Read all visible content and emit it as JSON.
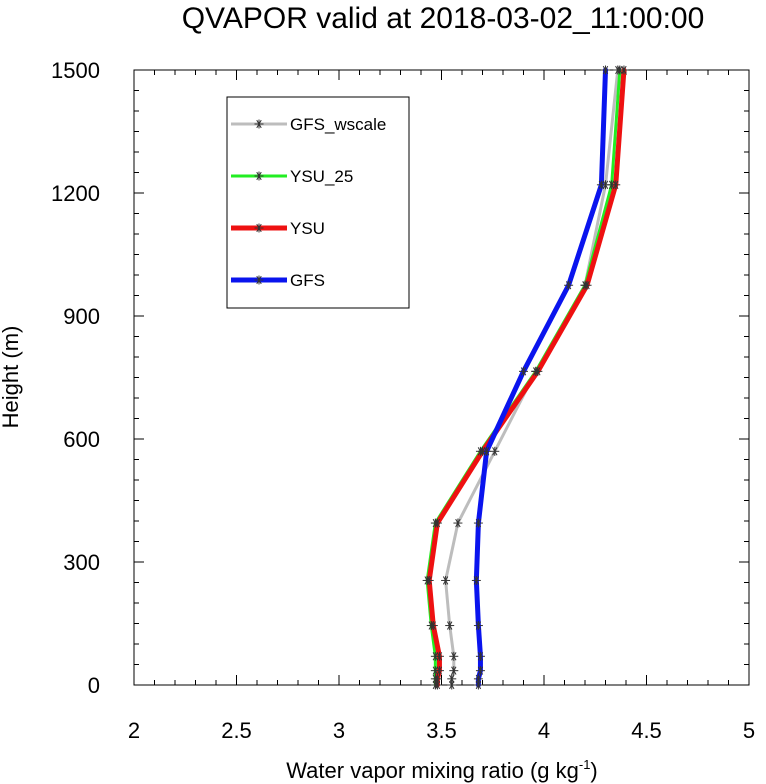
{
  "chart_data": {
    "type": "line",
    "title": "QVAPOR valid at 2018-03-02_11:00:00",
    "xlabel": "Water vapor mixing ratio (g kg",
    "xlabel_sup": "-1",
    "xlabel_end": ")",
    "ylabel": "Height (m)",
    "xlim": [
      2,
      5
    ],
    "ylim": [
      0,
      1500
    ],
    "x_ticks": [
      "2",
      "2.5",
      "3",
      "3.5",
      "4",
      "4.5",
      "5"
    ],
    "y_ticks": [
      "0",
      "300",
      "600",
      "900",
      "1200",
      "1500"
    ],
    "heights": [
      0,
      15,
      35,
      70,
      145,
      255,
      395,
      570,
      765,
      975,
      1220,
      1500
    ],
    "series": [
      {
        "name": "GFS_wscale",
        "color": "#bdbdbd",
        "width": 3,
        "values": [
          3.55,
          3.55,
          3.56,
          3.56,
          3.54,
          3.52,
          3.58,
          3.76,
          3.96,
          4.2,
          4.3,
          4.36
        ]
      },
      {
        "name": "YSU_25",
        "color": "#22ee22",
        "width": 3,
        "values": [
          3.47,
          3.47,
          3.47,
          3.47,
          3.45,
          3.43,
          3.47,
          3.69,
          3.96,
          4.2,
          4.33,
          4.37
        ]
      },
      {
        "name": "YSU",
        "color": "#ee1111",
        "width": 5,
        "values": [
          3.48,
          3.48,
          3.49,
          3.49,
          3.46,
          3.44,
          3.48,
          3.7,
          3.97,
          4.21,
          4.35,
          4.39
        ]
      },
      {
        "name": "GFS",
        "color": "#0a14ee",
        "width": 5,
        "values": [
          3.68,
          3.68,
          3.69,
          3.69,
          3.68,
          3.67,
          3.68,
          3.72,
          3.9,
          4.12,
          4.28,
          4.3
        ]
      }
    ],
    "legend": "upper-left",
    "grid": false
  }
}
